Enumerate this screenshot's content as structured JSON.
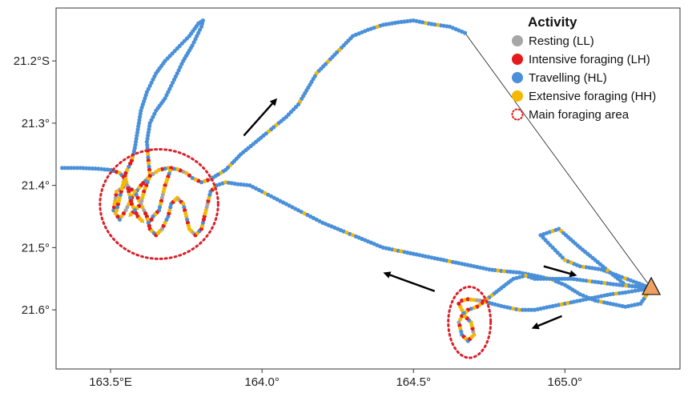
{
  "map": {
    "x_ticks": [
      {
        "value": 163.5,
        "label": "163.5°E"
      },
      {
        "value": 164.0,
        "label": "164.0°"
      },
      {
        "value": 164.5,
        "label": "164.5°"
      },
      {
        "value": 165.0,
        "label": "165.0°"
      }
    ],
    "y_ticks": [
      {
        "value": -21.2,
        "label": "21.2°S"
      },
      {
        "value": -21.3,
        "label": "21.3°"
      },
      {
        "value": -21.4,
        "label": "21.4°"
      },
      {
        "value": -21.5,
        "label": "21.5°"
      },
      {
        "value": -21.6,
        "label": "21.6°"
      }
    ],
    "xlim": [
      163.32,
      165.38
    ],
    "ylim": [
      -21.695,
      -21.115
    ]
  },
  "legend": {
    "title": "Activity",
    "entries": [
      {
        "label": "Resting (LL)",
        "color": "#a6a6a6",
        "kind": "dot"
      },
      {
        "label": "Intensive foraging (LH)",
        "color": "#e41a1c",
        "kind": "dot"
      },
      {
        "label": "Travelling (HL)",
        "color": "#4a90d9",
        "kind": "dot"
      },
      {
        "label": "Extensive foraging (HH)",
        "color": "#f5b800",
        "kind": "dot"
      },
      {
        "label": "Main foraging area",
        "color": "#e41a1c",
        "kind": "dashed-circle"
      }
    ]
  },
  "colony_marker": {
    "lon": 165.285,
    "lat": -21.565,
    "color": "#f0a060"
  },
  "foraging_areas": [
    {
      "lon": 163.66,
      "lat": -21.43,
      "rlon": 0.195,
      "rlat": 0.088
    },
    {
      "lon": 164.685,
      "lat": -21.62,
      "rlon": 0.07,
      "rlat": 0.057
    }
  ],
  "arrows": [
    {
      "from": [
        163.94,
        -21.32
      ],
      "to": [
        164.05,
        -21.26
      ]
    },
    {
      "from": [
        164.57,
        -21.57
      ],
      "to": [
        164.4,
        -21.54
      ]
    },
    {
      "from": [
        164.93,
        -21.53
      ],
      "to": [
        165.04,
        -21.545
      ]
    },
    {
      "from": [
        164.99,
        -21.61
      ],
      "to": [
        164.89,
        -21.63
      ]
    }
  ],
  "tracks": [
    {
      "kind": "trip",
      "points": [
        [
          165.285,
          -21.565
        ],
        [
          164.67,
          -21.155
        ],
        [
          164.62,
          -21.145
        ],
        [
          164.55,
          -21.14
        ],
        [
          164.5,
          -21.135
        ],
        [
          164.45,
          -21.138
        ],
        [
          164.4,
          -21.142
        ],
        [
          164.35,
          -21.15
        ],
        [
          164.3,
          -21.16
        ],
        [
          164.24,
          -21.19
        ],
        [
          164.18,
          -21.22
        ],
        [
          164.12,
          -21.27
        ],
        [
          164.08,
          -21.29
        ],
        [
          164.03,
          -21.31
        ],
        [
          163.98,
          -21.33
        ],
        [
          163.93,
          -21.35
        ],
        [
          163.88,
          -21.375
        ],
        [
          163.83,
          -21.39
        ],
        [
          163.8,
          -21.395
        ],
        [
          163.77,
          -21.388
        ],
        [
          163.75,
          -21.38
        ],
        [
          163.72,
          -21.374
        ],
        [
          163.69,
          -21.372
        ],
        [
          163.66,
          -21.375
        ],
        [
          163.63,
          -21.385
        ],
        [
          163.6,
          -21.4
        ],
        [
          163.57,
          -21.42
        ],
        [
          163.55,
          -21.44
        ],
        [
          163.53,
          -21.455
        ],
        [
          163.51,
          -21.44
        ],
        [
          163.52,
          -21.41
        ],
        [
          163.55,
          -21.4
        ],
        [
          163.58,
          -21.41
        ],
        [
          163.6,
          -21.43
        ],
        [
          163.62,
          -21.45
        ],
        [
          163.63,
          -21.47
        ],
        [
          163.65,
          -21.48
        ],
        [
          163.67,
          -21.47
        ],
        [
          163.69,
          -21.45
        ],
        [
          163.7,
          -21.43
        ],
        [
          163.72,
          -21.42
        ],
        [
          163.74,
          -21.43
        ],
        [
          163.75,
          -21.45
        ],
        [
          163.76,
          -21.47
        ],
        [
          163.78,
          -21.48
        ],
        [
          163.8,
          -21.47
        ],
        [
          163.81,
          -21.45
        ],
        [
          163.82,
          -21.43
        ],
        [
          163.83,
          -21.41
        ],
        [
          163.85,
          -21.4
        ],
        [
          163.88,
          -21.395
        ],
        [
          163.92,
          -21.398
        ],
        [
          163.96,
          -21.4
        ],
        [
          164.0,
          -21.41
        ],
        [
          164.04,
          -21.42
        ],
        [
          164.08,
          -21.43
        ],
        [
          164.12,
          -21.44
        ],
        [
          164.16,
          -21.45
        ],
        [
          164.2,
          -21.46
        ],
        [
          164.25,
          -21.47
        ],
        [
          164.3,
          -21.48
        ],
        [
          164.35,
          -21.49
        ],
        [
          164.4,
          -21.5
        ],
        [
          164.45,
          -21.505
        ],
        [
          164.5,
          -21.51
        ],
        [
          164.55,
          -21.515
        ],
        [
          164.6,
          -21.52
        ],
        [
          164.65,
          -21.525
        ],
        [
          164.7,
          -21.53
        ],
        [
          164.75,
          -21.535
        ],
        [
          164.8,
          -21.538
        ],
        [
          164.85,
          -21.54
        ],
        [
          164.9,
          -21.545
        ],
        [
          164.95,
          -21.55
        ],
        [
          165.0,
          -21.56
        ],
        [
          165.05,
          -21.575
        ],
        [
          165.1,
          -21.585
        ],
        [
          165.15,
          -21.59
        ],
        [
          165.2,
          -21.595
        ],
        [
          165.25,
          -21.59
        ],
        [
          165.285,
          -21.565
        ]
      ]
    },
    {
      "kind": "trip",
      "points": [
        [
          165.285,
          -21.565
        ],
        [
          165.12,
          -21.535
        ],
        [
          165.05,
          -21.53
        ],
        [
          165.0,
          -21.52
        ],
        [
          164.96,
          -21.5
        ],
        [
          164.92,
          -21.48
        ],
        [
          164.98,
          -21.47
        ],
        [
          165.05,
          -21.5
        ],
        [
          165.1,
          -21.52
        ],
        [
          165.2,
          -21.56
        ],
        [
          165.285,
          -21.565
        ]
      ]
    },
    {
      "kind": "trip",
      "points": [
        [
          165.285,
          -21.565
        ],
        [
          165.18,
          -21.56
        ],
        [
          165.1,
          -21.555
        ],
        [
          165.02,
          -21.55
        ],
        [
          164.95,
          -21.55
        ],
        [
          164.9,
          -21.55
        ],
        [
          164.87,
          -21.545
        ],
        [
          164.83,
          -21.55
        ],
        [
          164.79,
          -21.565
        ],
        [
          164.75,
          -21.58
        ],
        [
          164.71,
          -21.595
        ],
        [
          164.68,
          -21.6
        ],
        [
          164.66,
          -21.61
        ],
        [
          164.65,
          -21.62
        ],
        [
          164.66,
          -21.64
        ],
        [
          164.68,
          -21.65
        ],
        [
          164.7,
          -21.64
        ],
        [
          164.69,
          -21.62
        ],
        [
          164.67,
          -21.61
        ],
        [
          164.66,
          -21.6
        ],
        [
          164.65,
          -21.59
        ],
        [
          164.66,
          -21.585
        ],
        [
          164.68,
          -21.583
        ],
        [
          164.72,
          -21.585
        ],
        [
          164.76,
          -21.59
        ],
        [
          164.8,
          -21.595
        ],
        [
          164.85,
          -21.6
        ],
        [
          164.9,
          -21.6
        ],
        [
          164.95,
          -21.595
        ],
        [
          165.0,
          -21.59
        ],
        [
          165.05,
          -21.585
        ],
        [
          165.1,
          -21.58
        ],
        [
          165.15,
          -21.575
        ],
        [
          165.2,
          -21.572
        ],
        [
          165.285,
          -21.565
        ]
      ]
    },
    {
      "kind": "trip",
      "points": [
        [
          163.52,
          -21.44
        ],
        [
          163.53,
          -21.42
        ],
        [
          163.54,
          -21.4
        ],
        [
          163.55,
          -21.38
        ],
        [
          163.57,
          -21.36
        ],
        [
          163.58,
          -21.34
        ],
        [
          163.59,
          -21.31
        ],
        [
          163.6,
          -21.28
        ],
        [
          163.62,
          -21.25
        ],
        [
          163.65,
          -21.22
        ],
        [
          163.68,
          -21.2
        ],
        [
          163.72,
          -21.18
        ],
        [
          163.76,
          -21.16
        ],
        [
          163.79,
          -21.14
        ],
        [
          163.805,
          -21.135
        ],
        [
          163.8,
          -21.145
        ],
        [
          163.77,
          -21.175
        ],
        [
          163.74,
          -21.2
        ],
        [
          163.71,
          -21.23
        ],
        [
          163.68,
          -21.26
        ],
        [
          163.65,
          -21.28
        ],
        [
          163.63,
          -21.3
        ],
        [
          163.62,
          -21.33
        ],
        [
          163.625,
          -21.36
        ],
        [
          163.63,
          -21.385
        ],
        [
          163.61,
          -21.41
        ],
        [
          163.6,
          -21.43
        ],
        [
          163.58,
          -21.44
        ],
        [
          163.56,
          -21.45
        ]
      ]
    },
    {
      "kind": "trip",
      "points": [
        [
          163.34,
          -21.372
        ],
        [
          163.4,
          -21.372
        ],
        [
          163.45,
          -21.373
        ],
        [
          163.5,
          -21.375
        ],
        [
          163.53,
          -21.38
        ],
        [
          163.55,
          -21.39
        ],
        [
          163.56,
          -21.41
        ],
        [
          163.57,
          -21.43
        ],
        [
          163.59,
          -21.45
        ],
        [
          163.61,
          -21.46
        ]
      ]
    },
    {
      "kind": "trip",
      "points": [
        [
          163.7,
          -21.372
        ],
        [
          163.68,
          -21.4
        ],
        [
          163.67,
          -21.42
        ],
        [
          163.66,
          -21.44
        ],
        [
          163.64,
          -21.45
        ],
        [
          163.63,
          -21.46
        ]
      ]
    }
  ]
}
